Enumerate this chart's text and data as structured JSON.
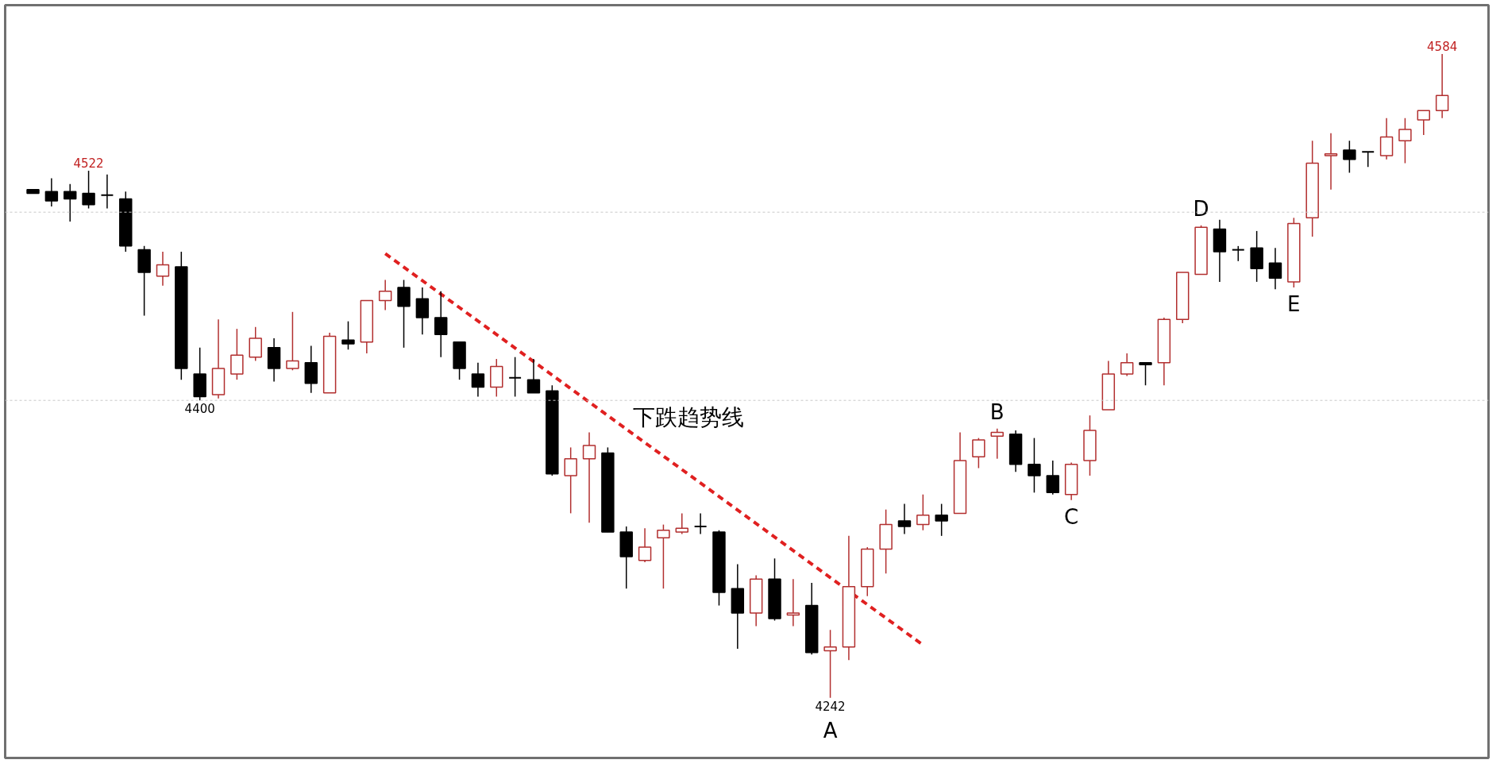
{
  "chart_data": {
    "type": "candlestick",
    "categories": [
      null,
      null,
      null,
      null,
      null,
      null,
      null,
      null,
      null,
      null,
      null,
      null,
      null,
      null,
      null,
      null,
      null,
      null,
      null,
      null,
      null,
      null,
      null,
      null,
      null,
      null,
      null,
      null,
      null,
      null,
      null,
      null,
      null,
      null,
      null,
      null,
      null,
      null,
      null,
      null,
      null,
      null,
      null,
      null,
      null,
      null,
      null,
      null,
      null,
      null,
      null,
      null,
      null,
      null,
      null,
      null,
      null,
      null,
      null,
      null,
      null,
      null,
      null,
      null,
      null,
      null,
      null,
      null,
      null,
      null,
      null,
      null,
      null,
      null,
      null,
      null,
      null
    ],
    "value_labels": [
      null,
      null,
      null,
      "4522",
      null,
      null,
      null,
      null,
      null,
      "4400",
      null,
      null,
      null,
      null,
      null,
      null,
      null,
      null,
      null,
      null,
      null,
      null,
      null,
      null,
      null,
      null,
      null,
      null,
      null,
      null,
      null,
      null,
      null,
      null,
      null,
      null,
      null,
      null,
      null,
      null,
      null,
      null,
      null,
      "4242",
      null,
      null,
      null,
      null,
      null,
      null,
      null,
      null,
      null,
      null,
      null,
      null,
      null,
      null,
      null,
      null,
      null,
      null,
      null,
      null,
      null,
      null,
      null,
      null,
      null,
      null,
      null,
      null,
      null,
      null,
      null,
      null,
      "4584"
    ],
    "ohlc": [
      [
        4512,
        4512,
        4510,
        4510
      ],
      [
        4511,
        4518,
        4503,
        4506
      ],
      [
        4511,
        4515,
        4495,
        4507
      ],
      [
        4510,
        4522,
        4502,
        4504
      ],
      [
        4509,
        4520,
        4502,
        4509
      ],
      [
        4507,
        4511,
        4479,
        4482
      ],
      [
        4480,
        4482,
        4445,
        4468
      ],
      [
        4466,
        4479,
        4461,
        4472
      ],
      [
        4471,
        4479,
        4411,
        4417
      ],
      [
        4414,
        4428,
        4400,
        4402
      ],
      [
        4403,
        4443,
        4401,
        4417
      ],
      [
        4414,
        4438,
        4411,
        4424
      ],
      [
        4423,
        4439,
        4421,
        4433
      ],
      [
        4428,
        4433,
        4410,
        4417
      ],
      [
        4417,
        4447,
        4416,
        4421
      ],
      [
        4420,
        4429,
        4404,
        4409
      ],
      [
        4404,
        4436,
        4404,
        4434
      ],
      [
        4432,
        4442,
        4427,
        4430
      ],
      [
        4431,
        4453,
        4425,
        4453
      ],
      [
        4453,
        4464,
        4448,
        4458
      ],
      [
        4460,
        4464,
        4428,
        4450
      ],
      [
        4454,
        4460,
        4435,
        4444
      ],
      [
        4444,
        4458,
        4423,
        4435
      ],
      [
        4431,
        4431,
        4411,
        4417
      ],
      [
        4414,
        4420,
        4402,
        4407
      ],
      [
        4407,
        4422,
        4402,
        4418
      ],
      [
        4412,
        4423,
        4402,
        4412
      ],
      [
        4411,
        4422,
        4404,
        4404
      ],
      [
        4405,
        4408,
        4360,
        4361
      ],
      [
        4360,
        4375,
        4340,
        4369
      ],
      [
        4369,
        4383,
        4335,
        4376
      ],
      [
        4372,
        4375,
        4330,
        4330
      ],
      [
        4330,
        4333,
        4300,
        4317
      ],
      [
        4315,
        4332,
        4314,
        4322
      ],
      [
        4327,
        4334,
        4300,
        4331
      ],
      [
        4330,
        4340,
        4329,
        4332
      ],
      [
        4333,
        4340,
        4329,
        4333
      ],
      [
        4330,
        4331,
        4291,
        4298
      ],
      [
        4300,
        4313,
        4268,
        4287
      ],
      [
        4287,
        4307,
        4280,
        4305
      ],
      [
        4305,
        4316,
        4283,
        4284
      ],
      [
        4286,
        4305,
        4280,
        4287
      ],
      [
        4291,
        4303,
        4265,
        4266
      ],
      [
        4267,
        4278,
        4242,
        4269
      ],
      [
        4269,
        4328,
        4262,
        4301
      ],
      [
        4301,
        4322,
        4296,
        4321
      ],
      [
        4321,
        4342,
        4308,
        4334
      ],
      [
        4336,
        4345,
        4329,
        4333
      ],
      [
        4334,
        4350,
        4331,
        4339
      ],
      [
        4339,
        4345,
        4328,
        4336
      ],
      [
        4340,
        4383,
        4340,
        4368
      ],
      [
        4370,
        4380,
        4364,
        4379
      ],
      [
        4381,
        4385,
        4369,
        4383
      ],
      [
        4382,
        4384,
        4362,
        4366
      ],
      [
        4366,
        4380,
        4351,
        4360
      ],
      [
        4360,
        4368,
        4350,
        4351
      ],
      [
        4350,
        4367,
        4347,
        4366
      ],
      [
        4368,
        4392,
        4360,
        4384
      ],
      [
        4395,
        4421,
        4395,
        4414
      ],
      [
        4414,
        4425,
        4413,
        4420
      ],
      [
        4420,
        4420,
        4408,
        4419
      ],
      [
        4420,
        4444,
        4408,
        4443
      ],
      [
        4443,
        4468,
        4441,
        4468
      ],
      [
        4467,
        4493,
        4467,
        4492
      ],
      [
        4491,
        4496,
        4463,
        4479
      ],
      [
        4480,
        4482,
        4474,
        4480
      ],
      [
        4481,
        4490,
        4463,
        4470
      ],
      [
        4473,
        4481,
        4459,
        4465
      ],
      [
        4463,
        4497,
        4460,
        4494
      ],
      [
        4497,
        4538,
        4487,
        4526
      ],
      [
        4530,
        4542,
        4512,
        4531
      ],
      [
        4533,
        4538,
        4521,
        4528
      ],
      [
        4532,
        4532,
        4524,
        4532
      ],
      [
        4530,
        4550,
        4528,
        4540
      ],
      [
        4538,
        4550,
        4526,
        4544
      ],
      [
        4549,
        4554,
        4541,
        4554
      ],
      [
        4554,
        4584,
        4550,
        4562
      ]
    ],
    "colors": [
      "#000000",
      "#000000",
      "#000000",
      "#000000",
      "#000000",
      "#000000",
      "#000000",
      "#b22f2f",
      "#000000",
      "#000000",
      "#b22f2f",
      "#b22f2f",
      "#b22f2f",
      "#000000",
      "#b22f2f",
      "#000000",
      "#b22f2f",
      "#000000",
      "#b22f2f",
      "#b22f2f",
      "#000000",
      "#000000",
      "#000000",
      "#000000",
      "#000000",
      "#b22f2f",
      "#000000",
      "#000000",
      "#000000",
      "#b22f2f",
      "#b22f2f",
      "#000000",
      "#000000",
      "#b22f2f",
      "#b22f2f",
      "#b22f2f",
      "#000000",
      "#000000",
      "#000000",
      "#b22f2f",
      "#000000",
      "#b22f2f",
      "#000000",
      "#b22f2f",
      "#b22f2f",
      "#b22f2f",
      "#b22f2f",
      "#000000",
      "#b22f2f",
      "#000000",
      "#b22f2f",
      "#b22f2f",
      "#b22f2f",
      "#000000",
      "#000000",
      "#000000",
      "#b22f2f",
      "#b22f2f",
      "#b22f2f",
      "#b22f2f",
      "#000000",
      "#b22f2f",
      "#b22f2f",
      "#b22f2f",
      "#000000",
      "#000000",
      "#000000",
      "#000000",
      "#b22f2f",
      "#b22f2f",
      "#b22f2f",
      "#000000",
      "#000000",
      "#b22f2f",
      "#b22f2f",
      "#b22f2f",
      "#b22f2f"
    ],
    "series": [
      {
        "type": "line",
        "color": "#e02020",
        "values": [
          null,
          null,
          null,
          null,
          null,
          null,
          null,
          null,
          null,
          null,
          null,
          null,
          null,
          null,
          null,
          null,
          null,
          null,
          null,
          4478,
          null,
          null,
          null,
          null,
          null,
          null,
          null,
          null,
          null,
          null,
          null,
          null,
          null,
          null,
          null,
          null,
          null,
          null,
          null,
          null,
          null,
          null,
          null,
          null,
          null,
          null,
          null,
          null,
          4270,
          null,
          null,
          null,
          null,
          null,
          null,
          null,
          null,
          null,
          null,
          null,
          null,
          null,
          null,
          null,
          null,
          null,
          null,
          null,
          null,
          null,
          null,
          null,
          null,
          null,
          null,
          null,
          null
        ]
      }
    ],
    "line_style": "dashed",
    "ylim": [
      4210,
      4610
    ],
    "tick_labels": false,
    "grid": false,
    "ref_lines": [
      {
        "axis": "y",
        "value": 4500,
        "color": "#c8c8c8",
        "line_style": "dotted"
      },
      {
        "axis": "y",
        "value": 4400,
        "color": "#c8c8c8",
        "line_style": "dotted"
      }
    ],
    "annotations": [
      "下跌趋势线",
      {
        "text": "A",
        "y": 4242
      },
      {
        "text": "B",
        "y": 4385
      },
      {
        "text": "C",
        "y": 4347
      },
      {
        "text": "D",
        "y": 4493
      },
      {
        "text": "E",
        "y": 4460
      }
    ]
  }
}
